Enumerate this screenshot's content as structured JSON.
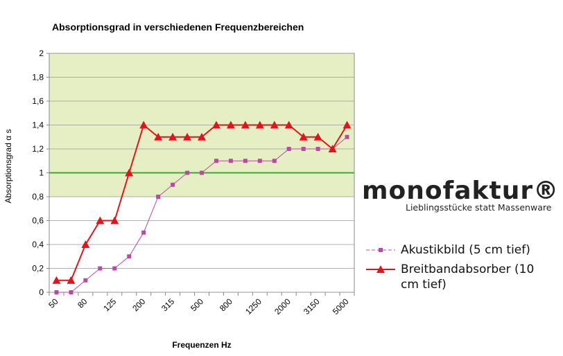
{
  "chart_data": {
    "type": "line",
    "title": "Absorptionsgrad in verschiedenen Frequenzbereichen",
    "x_label": "Frequenzen Hz",
    "y_label": "Absorptionsgrad α s",
    "categories": [
      "50",
      null,
      "80",
      null,
      "125",
      null,
      "200",
      null,
      "315",
      null,
      "500",
      null,
      "800",
      null,
      "1250",
      null,
      "2000",
      null,
      "3150",
      null,
      "5000"
    ],
    "series": [
      {
        "name": "Akustikbild (5 cm tief)",
        "color": "#b84aa6",
        "marker": "square",
        "values": [
          0,
          0,
          0.1,
          0.2,
          0.2,
          0.3,
          0.5,
          0.8,
          0.9,
          1.0,
          1.0,
          1.1,
          1.1,
          1.1,
          1.1,
          1.1,
          1.2,
          1.2,
          1.2,
          1.2,
          1.3
        ]
      },
      {
        "name": "Breitbandabsorber (10 cm tief)",
        "color": "#e3121b",
        "marker": "triangle",
        "values": [
          0.1,
          0.1,
          0.4,
          0.6,
          0.6,
          1.0,
          1.4,
          1.3,
          1.3,
          1.3,
          1.3,
          1.4,
          1.4,
          1.4,
          1.4,
          1.4,
          1.4,
          1.3,
          1.3,
          1.2,
          1.4
        ]
      }
    ],
    "ylim": [
      0,
      2
    ],
    "yticks": [
      0,
      {
        "value": 0.2,
        "label": "0,2"
      },
      {
        "value": 0.4,
        "label": "0,4"
      },
      {
        "value": 0.6,
        "label": "0,6"
      },
      {
        "value": 0.8,
        "label": "0,8"
      },
      1,
      {
        "value": 1.2,
        "label": "1,2"
      },
      {
        "value": 1.4,
        "label": "1,4"
      },
      {
        "value": 1.6,
        "label": "1,6"
      },
      {
        "value": 1.8,
        "label": "1,8"
      },
      2
    ],
    "grid": true,
    "shaded_range": [
      0.8,
      2
    ],
    "shaded_color": "#e5efc3",
    "reference_line": 1,
    "reference_color": "#3aa935"
  },
  "logo": {
    "name": "monofaktur®",
    "tagline": "Lieblingsstücke statt Massenware"
  }
}
